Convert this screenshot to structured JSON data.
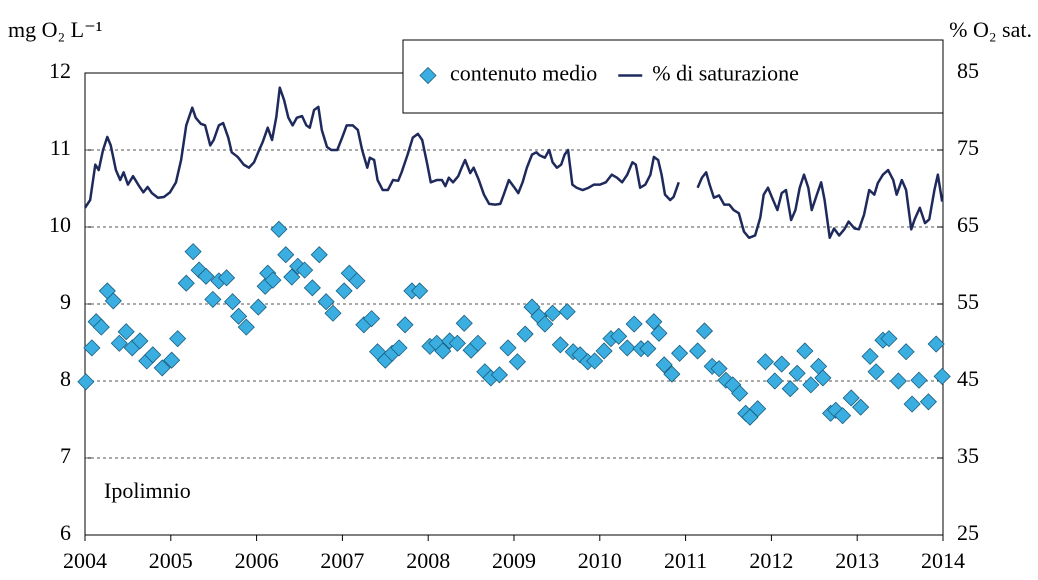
{
  "chart_data": {
    "type": "scatter",
    "y_label": "mg O₂ L⁻¹",
    "y2_label": "% O₂ sat.",
    "annotation": "Ipolimnio",
    "xlim": [
      2004,
      2014
    ],
    "xticks": [
      2004,
      2005,
      2006,
      2007,
      2008,
      2009,
      2010,
      2011,
      2012,
      2013,
      2014
    ],
    "ylim": [
      6,
      12
    ],
    "yticks": [
      6,
      7,
      8,
      9,
      10,
      11,
      12
    ],
    "y2lim": [
      25,
      85
    ],
    "y2ticks": [
      25,
      35,
      45,
      55,
      65,
      75,
      85
    ],
    "grid": true,
    "legend": "top-right",
    "series": [
      {
        "name": "contenuto medio",
        "type": "scatter",
        "color": "#3aaee0",
        "x": [
          2004.01,
          2004.08,
          2004.13,
          2004.19,
          2004.26,
          2004.33,
          2004.4,
          2004.48,
          2004.55,
          2004.64,
          2004.72,
          2004.79,
          2004.9,
          2005.01,
          2005.08,
          2005.18,
          2005.26,
          2005.33,
          2005.41,
          2005.49,
          2005.56,
          2005.65,
          2005.72,
          2005.79,
          2005.88,
          2006.02,
          2006.1,
          2006.13,
          2006.19,
          2006.26,
          2006.34,
          2006.41,
          2006.48,
          2006.56,
          2006.65,
          2006.73,
          2006.81,
          2006.89,
          2007.02,
          2007.08,
          2007.17,
          2007.25,
          2007.34,
          2007.41,
          2007.5,
          2007.58,
          2007.66,
          2007.73,
          2007.81,
          2007.9,
          2008.02,
          2008.1,
          2008.17,
          2008.25,
          2008.34,
          2008.42,
          2008.5,
          2008.58,
          2008.66,
          2008.73,
          2008.83,
          2008.93,
          2009.04,
          2009.13,
          2009.21,
          2009.29,
          2009.36,
          2009.45,
          2009.54,
          2009.62,
          2009.69,
          2009.77,
          2009.86,
          2009.94,
          2010.05,
          2010.13,
          2010.22,
          2010.32,
          2010.4,
          2010.48,
          2010.56,
          2010.63,
          2010.69,
          2010.75,
          2010.84,
          2010.93,
          2011.14,
          2011.22,
          2011.31,
          2011.39,
          2011.47,
          2011.55,
          2011.63,
          2011.7,
          2011.75,
          2011.84,
          2011.93,
          2012.04,
          2012.12,
          2012.22,
          2012.3,
          2012.39,
          2012.46,
          2012.55,
          2012.6,
          2012.69,
          2012.75,
          2012.83,
          2012.93,
          2013.04,
          2013.15,
          2013.22,
          2013.3,
          2013.37,
          2013.48,
          2013.57,
          2013.64,
          2013.72,
          2013.83,
          2013.92,
          2013.99
        ],
        "values": [
          7.99,
          8.43,
          8.77,
          8.7,
          9.17,
          9.04,
          8.49,
          8.64,
          8.43,
          8.52,
          8.26,
          8.34,
          8.17,
          8.27,
          8.55,
          9.27,
          9.68,
          9.44,
          9.36,
          9.06,
          9.3,
          9.34,
          9.03,
          8.84,
          8.7,
          8.96,
          9.23,
          9.4,
          9.31,
          9.97,
          9.64,
          9.35,
          9.49,
          9.44,
          9.21,
          9.64,
          9.03,
          8.88,
          9.17,
          9.4,
          9.3,
          8.73,
          8.81,
          8.38,
          8.27,
          8.36,
          8.43,
          8.73,
          9.17,
          9.17,
          8.45,
          8.49,
          8.39,
          8.52,
          8.49,
          8.75,
          8.4,
          8.49,
          8.12,
          8.04,
          8.08,
          8.43,
          8.25,
          8.61,
          8.96,
          8.84,
          8.74,
          8.88,
          8.47,
          8.9,
          8.38,
          8.34,
          8.25,
          8.26,
          8.39,
          8.55,
          8.58,
          8.43,
          8.74,
          8.42,
          8.42,
          8.77,
          8.62,
          8.21,
          8.09,
          8.36,
          8.39,
          8.65,
          8.19,
          8.16,
          8.01,
          7.95,
          7.84,
          7.58,
          7.53,
          7.64,
          8.25,
          8.0,
          8.22,
          7.9,
          8.1,
          8.39,
          7.95,
          8.19,
          8.04,
          7.58,
          7.62,
          7.55,
          7.78,
          7.66,
          8.32,
          8.12,
          8.53,
          8.55,
          8.0,
          8.38,
          7.7,
          8.01,
          7.73,
          8.48,
          8.06
        ]
      },
      {
        "name": "% di saturazione",
        "type": "line",
        "axis": "y2",
        "color": "#1f2a5c",
        "x": [
          2004.0,
          2004.06,
          2004.12,
          2004.16,
          2004.21,
          2004.26,
          2004.3,
          2004.36,
          2004.41,
          2004.45,
          2004.5,
          2004.56,
          2004.62,
          2004.68,
          2004.73,
          2004.78,
          2004.85,
          2004.92,
          2004.99,
          2005.06,
          2005.12,
          2005.18,
          2005.25,
          2005.29,
          2005.35,
          2005.4,
          2005.46,
          2005.5,
          2005.56,
          2005.61,
          2005.67,
          2005.71,
          2005.78,
          2005.85,
          2005.91,
          2005.97,
          2006.03,
          2006.07,
          2006.13,
          2006.18,
          2006.23,
          2006.27,
          2006.32,
          2006.37,
          2006.42,
          2006.47,
          2006.53,
          2006.58,
          2006.62,
          2006.67,
          2006.72,
          2006.76,
          2006.82,
          2006.87,
          2006.94,
          2007.0,
          2007.05,
          2007.12,
          2007.18,
          2007.23,
          2007.29,
          2007.32,
          2007.37,
          2007.41,
          2007.47,
          2007.53,
          2007.59,
          2007.65,
          2007.69,
          2007.76,
          2007.82,
          2007.88,
          2007.93,
          2007.99,
          2008.03,
          2008.1,
          2008.16,
          2008.2,
          2008.24,
          2008.29,
          2008.35,
          2008.39,
          2008.43,
          2008.49,
          2008.53,
          2008.59,
          2008.65,
          2008.71,
          2008.78,
          2008.84,
          2008.88,
          2008.94,
          2009.0,
          2009.05,
          2009.1,
          2009.15,
          2009.21,
          2009.26,
          2009.3,
          2009.36,
          2009.41,
          2009.45,
          2009.5,
          2009.55,
          2009.59,
          2009.63,
          2009.68,
          2009.73,
          2009.8,
          2009.87,
          2009.93,
          2010.0,
          2010.07,
          2010.14,
          2010.2,
          2010.26,
          2010.32,
          2010.38,
          2010.42,
          2010.47,
          2010.53,
          2010.59,
          2010.63,
          2010.68,
          2010.72,
          2010.76,
          2010.82,
          2010.86,
          2010.92,
          2011.03,
          2011.14,
          2011.19,
          2011.24,
          2011.28,
          2011.33,
          2011.39,
          2011.45,
          2011.51,
          2011.56,
          2011.62,
          2011.68,
          2011.74,
          2011.81,
          2011.87,
          2011.91,
          2011.96,
          2012.02,
          2012.07,
          2012.12,
          2012.17,
          2012.23,
          2012.28,
          2012.33,
          2012.38,
          2012.43,
          2012.47,
          2012.53,
          2012.58,
          2012.62,
          2012.68,
          2012.73,
          2012.79,
          2012.85,
          2012.9,
          2012.97,
          2013.02,
          2013.08,
          2013.14,
          2013.2,
          2013.24,
          2013.3,
          2013.36,
          2013.42,
          2013.46,
          2013.52,
          2013.57,
          2013.63,
          2013.67,
          2013.73,
          2013.79,
          2013.84,
          2013.9,
          2013.94,
          2013.99
        ],
        "values": [
          67.5,
          68.5,
          73.1,
          72.4,
          75.0,
          76.7,
          75.6,
          72.4,
          71.1,
          72.1,
          70.5,
          71.6,
          70.5,
          69.5,
          70.2,
          69.4,
          68.8,
          68.9,
          69.5,
          70.8,
          73.7,
          78.2,
          80.5,
          79.2,
          78.4,
          78.2,
          75.6,
          76.3,
          78.2,
          78.5,
          76.6,
          74.7,
          74.1,
          73.1,
          72.7,
          73.4,
          75.0,
          76.0,
          77.9,
          76.3,
          79.3,
          83.1,
          81.5,
          79.2,
          78.2,
          79.2,
          79.4,
          78.2,
          77.9,
          80.2,
          80.6,
          77.6,
          75.4,
          75.0,
          75.0,
          76.7,
          78.2,
          78.2,
          77.6,
          75.0,
          72.7,
          74.0,
          73.7,
          71.1,
          69.8,
          69.8,
          71.1,
          71.0,
          72.1,
          74.4,
          76.6,
          77.1,
          76.3,
          73.1,
          70.8,
          71.1,
          71.1,
          70.3,
          71.4,
          70.8,
          71.6,
          72.7,
          73.7,
          72.0,
          72.7,
          71.1,
          69.2,
          68.0,
          67.9,
          68.0,
          69.2,
          71.1,
          70.2,
          69.4,
          70.8,
          72.7,
          74.4,
          74.7,
          74.3,
          74.0,
          75.0,
          73.4,
          72.7,
          73.1,
          74.4,
          75.0,
          70.5,
          70.1,
          69.8,
          70.1,
          70.5,
          70.5,
          70.8,
          71.8,
          71.4,
          70.8,
          71.8,
          73.4,
          73.1,
          70.1,
          70.5,
          71.8,
          74.1,
          73.7,
          71.8,
          69.2,
          68.5,
          68.9,
          70.8,
          null,
          70.1,
          71.4,
          72.1,
          70.5,
          68.8,
          69.1,
          67.9,
          67.9,
          67.2,
          66.8,
          64.4,
          63.6,
          63.9,
          66.2,
          69.2,
          70.1,
          68.5,
          67.2,
          69.4,
          69.8,
          65.9,
          67.2,
          70.1,
          71.8,
          70.1,
          67.2,
          69.2,
          70.8,
          68.5,
          63.6,
          64.8,
          63.9,
          64.7,
          65.7,
          64.8,
          64.7,
          66.6,
          69.8,
          69.2,
          70.7,
          71.8,
          72.4,
          71.1,
          69.2,
          71.1,
          69.8,
          64.7,
          66.0,
          67.5,
          65.5,
          66.0,
          69.8,
          71.8,
          68.3
        ]
      }
    ]
  }
}
